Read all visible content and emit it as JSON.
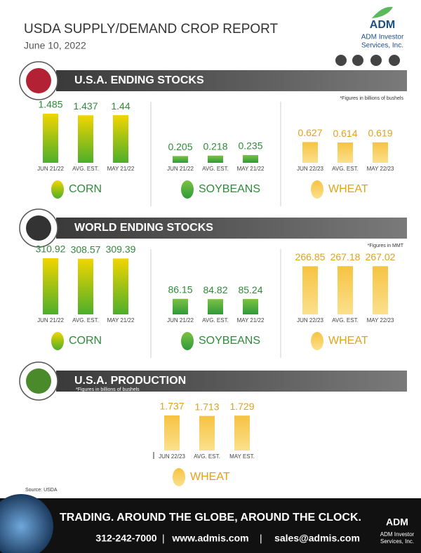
{
  "header": {
    "title": "USDA SUPPLY/DEMAND CROP REPORT",
    "date": "June 10, 2022",
    "logo": "ADM",
    "company": [
      "ADM Investor",
      "Services, Inc."
    ]
  },
  "sections": [
    {
      "title": "U.S.A. ENDING STOCKS",
      "note": "*Figures in billions of bushels",
      "groups": [
        {
          "name": "CORN",
          "color": "corn",
          "bars": [
            {
              "label": "JUN 21/22",
              "value": 1.485
            },
            {
              "label": "AVG. EST.",
              "value": 1.437
            },
            {
              "label": "MAY 21/22",
              "value": 1.44
            }
          ]
        },
        {
          "name": "SOYBEANS",
          "color": "soy",
          "bars": [
            {
              "label": "JUN 21/22",
              "value": 0.205
            },
            {
              "label": "AVG. EST.",
              "value": 0.218
            },
            {
              "label": "MAY 21/22",
              "value": 0.235
            }
          ]
        },
        {
          "name": "WHEAT",
          "color": "wheat",
          "bars": [
            {
              "label": "JUN 22/23",
              "value": 0.627
            },
            {
              "label": "AVG. EST.",
              "value": 0.614
            },
            {
              "label": "MAY 22/23",
              "value": 0.619
            }
          ]
        }
      ]
    },
    {
      "title": "WORLD ENDING STOCKS",
      "note": "*Figures in MMT",
      "groups": [
        {
          "name": "CORN",
          "color": "corn",
          "bars": [
            {
              "label": "JUN 21/22",
              "value": 310.92
            },
            {
              "label": "AVG. EST.",
              "value": 308.57
            },
            {
              "label": "MAY 21/22",
              "value": 309.39
            }
          ]
        },
        {
          "name": "SOYBEANS",
          "color": "soy",
          "bars": [
            {
              "label": "JUN 21/22",
              "value": 86.15
            },
            {
              "label": "AVG. EST.",
              "value": 84.82
            },
            {
              "label": "MAY 21/22",
              "value": 85.24
            }
          ]
        },
        {
          "name": "WHEAT",
          "color": "wheat",
          "bars": [
            {
              "label": "JUN 22/23",
              "value": 266.85
            },
            {
              "label": "AVG. EST.",
              "value": 267.18
            },
            {
              "label": "MAY 22/23",
              "value": 267.02
            }
          ]
        }
      ]
    },
    {
      "title": "U.S.A. PRODUCTION",
      "note": "*Figures in billions of bushels",
      "groups": [
        {
          "name": "WHEAT",
          "color": "wheat",
          "bars": [
            {
              "label": "JUN 22/23",
              "value": 1.737
            },
            {
              "label": "AVG. EST.",
              "value": 1.713
            },
            {
              "label": "MAY EST.",
              "value": 1.729
            }
          ]
        }
      ]
    }
  ],
  "source": "Source: USDA",
  "footer": {
    "tagline": "TRADING. AROUND THE GLOBE, AROUND THE CLOCK.",
    "phone": "312-242-7000",
    "web": "www.admis.com",
    "email": "sales@admis.com"
  }
}
